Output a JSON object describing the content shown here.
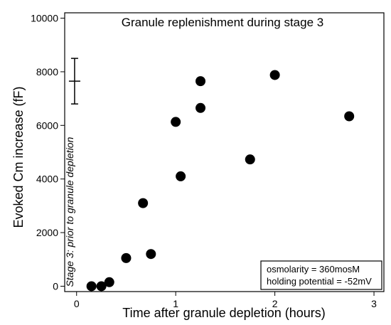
{
  "chart_data": {
    "type": "scatter",
    "title": "Granule replenishment during stage 3",
    "xlabel": "Time after granule depletion (hours)",
    "ylabel": "Evoked Cm increase (fF)",
    "xlim": [
      -0.12,
      3.1
    ],
    "ylim": [
      -200,
      10200
    ],
    "x_ticks": [
      0,
      1,
      2,
      3
    ],
    "y_ticks": [
      0,
      2000,
      4000,
      6000,
      8000,
      10000
    ],
    "grid": false,
    "marker_color": "#000000",
    "points": [
      {
        "x": 0.15,
        "y": 0
      },
      {
        "x": 0.25,
        "y": 0
      },
      {
        "x": 0.33,
        "y": 150
      },
      {
        "x": 0.5,
        "y": 1050
      },
      {
        "x": 0.67,
        "y": 3100
      },
      {
        "x": 0.75,
        "y": 1200
      },
      {
        "x": 1.0,
        "y": 6130
      },
      {
        "x": 1.05,
        "y": 4100
      },
      {
        "x": 1.25,
        "y": 7650
      },
      {
        "x": 1.25,
        "y": 6650
      },
      {
        "x": 1.75,
        "y": 4730
      },
      {
        "x": 2.0,
        "y": 7880
      },
      {
        "x": 2.75,
        "y": 6340
      }
    ],
    "reference": {
      "x": -0.02,
      "mean": 7650,
      "error": 850,
      "label": "Stage 3: prior to granule depletion"
    },
    "legend": {
      "placement": "bottom-right",
      "lines": [
        "osmolarity = 360mosM",
        "holding potential = -52mV"
      ]
    }
  }
}
